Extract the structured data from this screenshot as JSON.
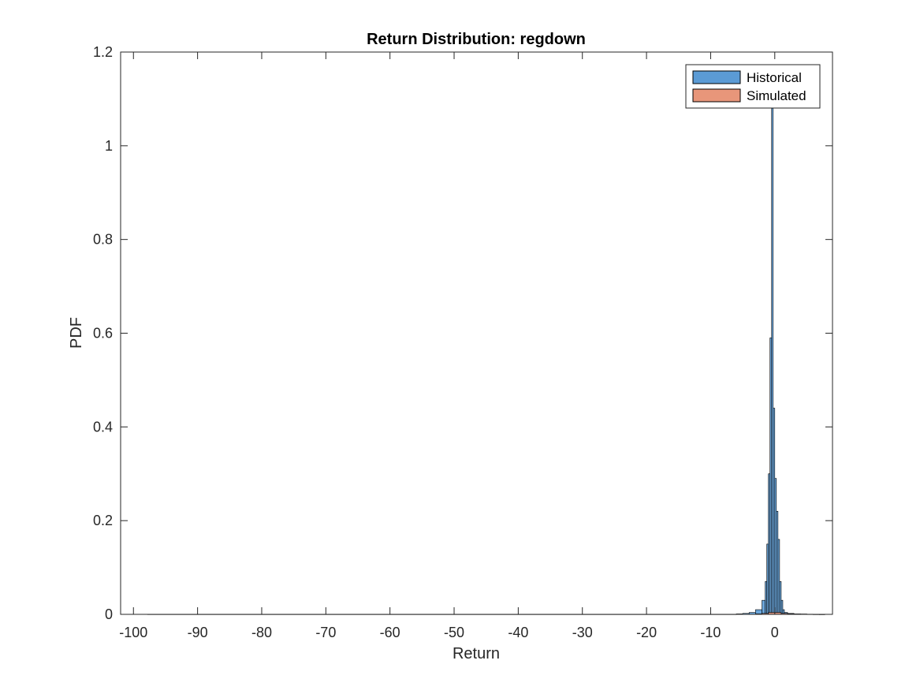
{
  "chart_data": {
    "type": "bar",
    "title": "Return Distribution: regdown",
    "xlabel": "Return",
    "ylabel": "PDF",
    "xlim": [
      -102,
      9
    ],
    "ylim": [
      0,
      1.2
    ],
    "x_ticks": [
      -100,
      -90,
      -80,
      -70,
      -60,
      -50,
      -40,
      -30,
      -20,
      -10,
      0
    ],
    "y_ticks": [
      0,
      0.2,
      0.4,
      0.6,
      0.8,
      1,
      1.2
    ],
    "x_tick_labels": [
      "-100",
      "-90",
      "-80",
      "-70",
      "-60",
      "-50",
      "-40",
      "-30",
      "-20",
      "-10",
      "0"
    ],
    "y_tick_labels": [
      "0",
      "0.2",
      "0.4",
      "0.6",
      "0.8",
      "1",
      "1.2"
    ],
    "legend_position": "top-right",
    "grid": false,
    "series": [
      {
        "name": "Historical",
        "color": "#5B9BD5",
        "bin_edges": [
          -97.8,
          -6.0,
          -5.0,
          -4.0,
          -3.0,
          -2.0,
          -1.5,
          -1.25,
          -1.0,
          -0.75,
          -0.5,
          -0.25,
          0.0,
          0.25,
          0.5,
          0.75,
          1.0,
          1.25,
          1.5,
          2.0,
          3.0,
          4.0,
          5.0,
          6.0,
          7.0,
          7.8
        ],
        "values": [
          0.0003,
          0.001,
          0.002,
          0.004,
          0.01,
          0.03,
          0.07,
          0.15,
          0.3,
          0.59,
          1.08,
          0.44,
          0.29,
          0.22,
          0.16,
          0.07,
          0.03,
          0.01,
          0.004,
          0.002,
          0.001,
          0.0008,
          0.0004,
          0.0002,
          0.0001
        ]
      },
      {
        "name": "Simulated",
        "color": "#E8967A",
        "bin_edges": [
          -3.0,
          -2.0,
          -1.0,
          0.0,
          1.0,
          2.0,
          3.0
        ],
        "values": [
          0.001,
          0.002,
          0.004,
          0.004,
          0.002,
          0.001
        ]
      }
    ]
  }
}
